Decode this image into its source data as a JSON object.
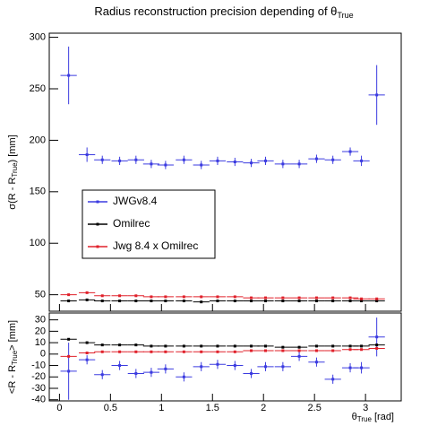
{
  "chart_data": [
    {
      "type": "scatter",
      "title": "Radius reconstruction precision depending of θ",
      "title_subscript": "True",
      "y_label": "σ(R - R",
      "y_label_subscript": "True",
      "y_label_end": ") [mm]",
      "x": [
        0.09,
        0.27,
        0.42,
        0.59,
        0.75,
        0.9,
        1.04,
        1.22,
        1.39,
        1.55,
        1.72,
        1.88,
        2.02,
        2.19,
        2.35,
        2.52,
        2.68,
        2.85,
        2.96,
        3.11
      ],
      "x_error": 0.08,
      "xlim": [
        -0.1,
        3.35
      ],
      "xticks": [
        0,
        0.5,
        1,
        1.5,
        2,
        2.5,
        3
      ],
      "ylim": [
        34,
        304
      ],
      "yticks": [
        50,
        100,
        150,
        200,
        250,
        300
      ],
      "legend": "center-left",
      "series": [
        {
          "name": "JWGv8.4",
          "color": "#3b3be0",
          "values": [
            263,
            186,
            181,
            180,
            181,
            177,
            176,
            181,
            176,
            180,
            179,
            178,
            180,
            177,
            177,
            182,
            181,
            189,
            180,
            244
          ],
          "errors": [
            28,
            7,
            4,
            4,
            4,
            4,
            4,
            4,
            4,
            4,
            4,
            4,
            4,
            4,
            4,
            4,
            4,
            4,
            5,
            29
          ]
        },
        {
          "name": "Omilrec",
          "color": "#000000",
          "values": [
            44,
            45,
            44,
            44,
            44,
            44,
            44,
            44,
            43,
            44,
            44,
            44,
            44,
            44,
            44,
            44,
            44,
            44,
            44,
            44
          ],
          "errors": [
            1,
            1,
            1,
            1,
            1,
            1,
            1,
            1,
            1,
            1,
            1,
            1,
            1,
            1,
            1,
            1,
            1,
            1,
            1,
            1
          ]
        },
        {
          "name": "Jwg 8.4 x Omilrec",
          "color": "#e0202a",
          "values": [
            50,
            52,
            49,
            49,
            49,
            48,
            48,
            48,
            48,
            48,
            48,
            47,
            47,
            47,
            47,
            47,
            47,
            47,
            46,
            46
          ],
          "errors": [
            1,
            1,
            1,
            1,
            1,
            1,
            1,
            1,
            1,
            1,
            1,
            1,
            1,
            1,
            1,
            1,
            1,
            1,
            1,
            1
          ]
        }
      ]
    },
    {
      "type": "scatter",
      "y_label": "<R - R",
      "y_label_subscript": "True",
      "y_label_end": "> [mm]",
      "x_label": "θ",
      "x_label_subscript": "True",
      "x_label_end": " [rad]",
      "x": [
        0.09,
        0.27,
        0.42,
        0.59,
        0.75,
        0.9,
        1.04,
        1.22,
        1.39,
        1.55,
        1.72,
        1.88,
        2.02,
        2.19,
        2.35,
        2.52,
        2.68,
        2.85,
        2.96,
        3.11
      ],
      "x_error": 0.08,
      "xlim": [
        -0.1,
        3.35
      ],
      "xticks": [
        0,
        0.5,
        1,
        1.5,
        2,
        2.5,
        3
      ],
      "ylim": [
        -41,
        36
      ],
      "yticks": [
        -40,
        -30,
        -20,
        -10,
        0,
        10,
        20,
        30
      ],
      "series": [
        {
          "name": "JWGv8.4",
          "color": "#3b3be0",
          "values": [
            -15,
            -5,
            -18,
            -10,
            -17,
            -16,
            -13,
            -20,
            -11,
            -9,
            -10,
            -17,
            -11,
            -11,
            -2,
            -7,
            -22,
            -12,
            -12,
            15
          ],
          "errors": [
            25,
            4,
            4,
            4,
            4,
            4,
            4,
            4,
            4,
            4,
            4,
            4,
            4,
            4,
            4,
            4,
            4,
            4,
            5,
            17
          ]
        },
        {
          "name": "Omilrec",
          "color": "#000000",
          "values": [
            13,
            10,
            8,
            8,
            8,
            7,
            7,
            7,
            7,
            7,
            7,
            7,
            7,
            6,
            6,
            7,
            7,
            7,
            7,
            8
          ],
          "errors": [
            1,
            1,
            1,
            1,
            1,
            1,
            1,
            1,
            1,
            1,
            1,
            1,
            1,
            1,
            1,
            1,
            1,
            1,
            1,
            1
          ]
        },
        {
          "name": "Jwg 8.4 x Omilrec",
          "color": "#e0202a",
          "values": [
            -2,
            1,
            2,
            2,
            2,
            2,
            2,
            2,
            2,
            2,
            2,
            3,
            3,
            3,
            3,
            3,
            3,
            4,
            4,
            5
          ],
          "errors": [
            1,
            1,
            1,
            1,
            1,
            1,
            1,
            1,
            1,
            1,
            1,
            1,
            1,
            1,
            1,
            1,
            1,
            1,
            1,
            1
          ]
        }
      ]
    }
  ]
}
